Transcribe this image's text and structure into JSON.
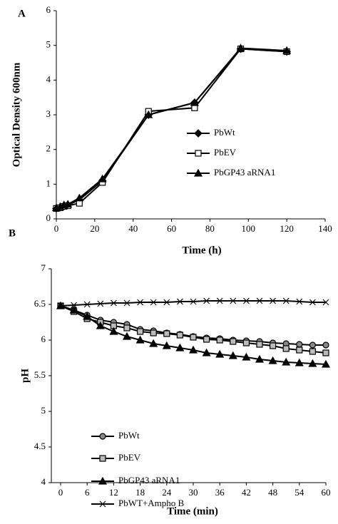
{
  "chart_data": [
    {
      "type": "line",
      "panel_label": "A",
      "x_label": "Time (h)",
      "y_label": "Optical Density 600nm",
      "x": [
        0,
        2,
        4,
        6,
        12,
        24,
        48,
        72,
        96,
        120
      ],
      "xlim": [
        0,
        140
      ],
      "xticks": [
        0,
        20,
        40,
        60,
        80,
        100,
        120,
        140
      ],
      "ylim": [
        0,
        6
      ],
      "yticks": [
        0,
        1,
        2,
        3,
        4,
        5,
        6
      ],
      "series": [
        {
          "name": "PbWt",
          "color": "#000000",
          "marker": "diamond",
          "values": [
            0.3,
            0.33,
            0.37,
            0.4,
            0.55,
            1.1,
            3.0,
            3.35,
            4.9,
            4.82
          ]
        },
        {
          "name": "PbEV",
          "color": "#000000",
          "marker": "square",
          "values": [
            0.3,
            0.32,
            0.36,
            0.38,
            0.45,
            1.05,
            3.1,
            3.2,
            4.9,
            4.82
          ]
        },
        {
          "name": "PbGP43 aRNA1",
          "color": "#000000",
          "marker": "triangle",
          "values": [
            0.32,
            0.35,
            0.4,
            0.42,
            0.6,
            1.15,
            3.0,
            3.35,
            4.92,
            4.85
          ]
        }
      ]
    },
    {
      "type": "line",
      "panel_label": "B",
      "x_label": "Time (min)",
      "y_label": "pH",
      "x": [
        0,
        3,
        6,
        9,
        12,
        15,
        18,
        21,
        24,
        27,
        30,
        33,
        36,
        39,
        42,
        45,
        48,
        51,
        54,
        57,
        60
      ],
      "xlim": [
        0,
        60
      ],
      "xticks": [
        0,
        6,
        12,
        18,
        24,
        30,
        36,
        42,
        48,
        54,
        60
      ],
      "ylim": [
        4,
        7
      ],
      "yticks": [
        4,
        4.5,
        5,
        5.5,
        6,
        6.5,
        7
      ],
      "series": [
        {
          "name": "PbWt",
          "color": "#888888",
          "marker": "circle",
          "values": [
            6.48,
            6.42,
            6.35,
            6.28,
            6.25,
            6.22,
            6.15,
            6.13,
            6.1,
            6.08,
            6.05,
            6.03,
            6.02,
            6.0,
            5.99,
            5.98,
            5.96,
            5.95,
            5.94,
            5.93,
            5.93
          ]
        },
        {
          "name": "PbEV",
          "color": "#bbbbbb",
          "marker": "square",
          "values": [
            6.48,
            6.4,
            6.3,
            6.25,
            6.2,
            6.17,
            6.12,
            6.1,
            6.09,
            6.07,
            6.04,
            6.01,
            6.0,
            5.98,
            5.96,
            5.94,
            5.92,
            5.88,
            5.86,
            5.84,
            5.82
          ]
        },
        {
          "name": "PbGP43 aRNA1",
          "color": "#000000",
          "marker": "triangle",
          "values": [
            6.48,
            6.42,
            6.33,
            6.2,
            6.12,
            6.05,
            6.0,
            5.95,
            5.92,
            5.89,
            5.86,
            5.82,
            5.8,
            5.78,
            5.76,
            5.73,
            5.71,
            5.69,
            5.68,
            5.67,
            5.66
          ]
        },
        {
          "name": "PbWT+Ampho B",
          "color": "#000000",
          "marker": "x",
          "values": [
            6.48,
            6.49,
            6.5,
            6.51,
            6.52,
            6.52,
            6.53,
            6.53,
            6.53,
            6.54,
            6.54,
            6.55,
            6.55,
            6.55,
            6.55,
            6.55,
            6.55,
            6.55,
            6.54,
            6.53,
            6.53
          ]
        }
      ]
    }
  ]
}
